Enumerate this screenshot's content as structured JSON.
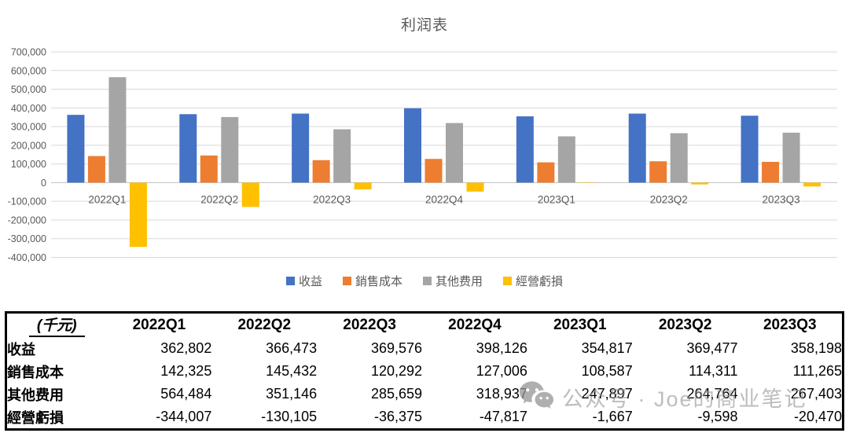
{
  "chart_data": {
    "type": "bar",
    "title": "利润表",
    "categories": [
      "2022Q1",
      "2022Q2",
      "2022Q3",
      "2022Q4",
      "2023Q1",
      "2023Q2",
      "2023Q3"
    ],
    "series": [
      {
        "name": "收益",
        "color": "#4472C4",
        "values": [
          362802,
          366473,
          369576,
          398126,
          354817,
          369477,
          358198
        ]
      },
      {
        "name": "銷售成本",
        "color": "#ED7D31",
        "values": [
          142325,
          145432,
          120292,
          127006,
          108587,
          114311,
          111265
        ]
      },
      {
        "name": "其他费用",
        "color": "#A5A5A5",
        "values": [
          564484,
          351146,
          285659,
          318937,
          247897,
          264764,
          267403
        ]
      },
      {
        "name": "經營虧損",
        "color": "#FFC000",
        "values": [
          -344007,
          -130105,
          -36375,
          -47817,
          -1667,
          -9598,
          -20470
        ]
      }
    ],
    "ylim": [
      -400000,
      700000
    ],
    "ytick_step": 100000,
    "grid": true,
    "legend_position": "bottom",
    "axis_text_color": "#595959",
    "gridline_color": "#d9d9d9",
    "zero_line_color": "#bfbfbf"
  },
  "table": {
    "unit_label": "(千元)",
    "columns": [
      "2022Q1",
      "2022Q2",
      "2022Q3",
      "2022Q4",
      "2023Q1",
      "2023Q2",
      "2023Q3"
    ],
    "rows": [
      {
        "label": "收益",
        "values": [
          "362,802",
          "366,473",
          "369,576",
          "398,126",
          "354,817",
          "369,477",
          "358,198"
        ]
      },
      {
        "label": "銷售成本",
        "values": [
          "142,325",
          "145,432",
          "120,292",
          "127,006",
          "108,587",
          "114,311",
          "111,265"
        ]
      },
      {
        "label": "其他费用",
        "values": [
          "564,484",
          "351,146",
          "285,659",
          "318,937",
          "247,897",
          "264,764",
          "267,403"
        ]
      },
      {
        "label": "經營虧損",
        "values": [
          "-344,007",
          "-130,105",
          "-36,375",
          "-47,817",
          "-1,667",
          "-9,598",
          "-20,470"
        ]
      }
    ]
  },
  "watermark": {
    "icon": "wechat-icon",
    "text": "公众号 · Joe的商业笔记"
  }
}
